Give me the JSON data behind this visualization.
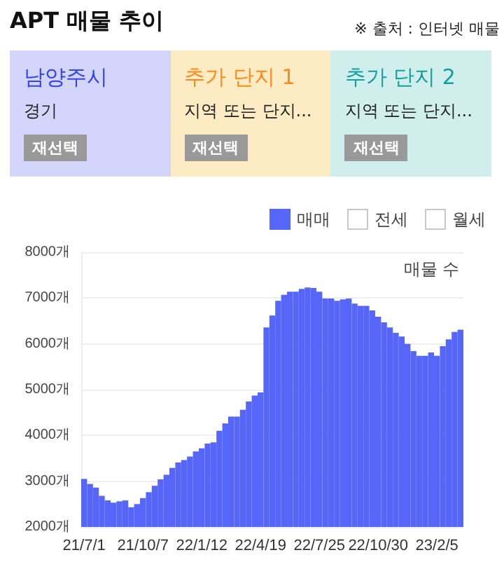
{
  "chart_data": {
    "type": "bar",
    "title": "APT 매물 추이",
    "ylabel": "매물 수",
    "annotations": [
      "※ 출처 : 인터넷 매물",
      "남양주시",
      "경기",
      "재선택",
      "추가 단지 1",
      "지역 또는 단지...",
      "재선택",
      "추가 단지 2",
      "지역 또는 단지...",
      "재선택"
    ],
    "categories": [
      "21/7/1",
      null,
      null,
      null,
      null,
      null,
      null,
      null,
      null,
      null,
      "21/10/7",
      null,
      null,
      null,
      null,
      null,
      null,
      null,
      null,
      null,
      "22/1/12",
      null,
      null,
      null,
      null,
      null,
      null,
      null,
      null,
      null,
      "22/4/19",
      null,
      null,
      null,
      null,
      null,
      null,
      null,
      null,
      null,
      "22/7/25",
      null,
      null,
      null,
      null,
      null,
      null,
      null,
      null,
      null,
      "22/10/30",
      null,
      null,
      null,
      null,
      null,
      null,
      null,
      null,
      null,
      "23/2/5",
      null,
      null,
      null,
      null
    ],
    "series": [
      {
        "name": "매매",
        "color": "#5566f8",
        "values": [
          3050,
          2940,
          2860,
          2680,
          2580,
          2530,
          2560,
          2580,
          2430,
          2500,
          2630,
          2760,
          2900,
          3040,
          3140,
          3290,
          3410,
          3460,
          3540,
          3650,
          3720,
          3820,
          3850,
          4100,
          4260,
          4410,
          4410,
          4560,
          4740,
          4870,
          4940,
          6360,
          6620,
          6940,
          7070,
          7140,
          7140,
          7200,
          7230,
          7220,
          7140,
          6990,
          6990,
          6940,
          6970,
          6990,
          6880,
          6830,
          6830,
          6730,
          6590,
          6470,
          6360,
          6240,
          6160,
          6000,
          5840,
          5740,
          5740,
          5810,
          5740,
          5950,
          6100,
          6260,
          6310
        ]
      },
      {
        "name": "전세",
        "color": "#ffffff",
        "values": [
          null,
          null,
          null,
          null,
          null,
          null,
          null,
          null,
          null,
          null,
          null,
          null,
          null,
          null,
          null,
          null,
          null,
          null,
          null,
          null,
          null,
          null,
          null,
          null,
          null,
          null,
          null,
          null,
          null,
          null,
          null,
          null,
          null,
          null,
          null,
          null,
          null,
          null,
          null,
          null,
          null,
          null,
          null,
          null,
          null,
          null,
          null,
          null,
          null,
          null,
          null,
          null,
          null,
          null,
          null,
          null,
          null,
          null,
          null,
          null,
          null,
          null,
          null,
          null,
          null
        ]
      },
      {
        "name": "월세",
        "color": "#ffffff",
        "values": [
          null,
          null,
          null,
          null,
          null,
          null,
          null,
          null,
          null,
          null,
          null,
          null,
          null,
          null,
          null,
          null,
          null,
          null,
          null,
          null,
          null,
          null,
          null,
          null,
          null,
          null,
          null,
          null,
          null,
          null,
          null,
          null,
          null,
          null,
          null,
          null,
          null,
          null,
          null,
          null,
          null,
          null,
          null,
          null,
          null,
          null,
          null,
          null,
          null,
          null,
          null,
          null,
          null,
          null,
          null,
          null,
          null,
          null,
          null,
          null,
          null,
          null,
          null,
          null,
          null
        ]
      }
    ],
    "ylim": [
      2000,
      8000
    ],
    "yticks": [
      {
        "value": 2000,
        "label": "2000개"
      },
      {
        "value": 3000,
        "label": "3000개"
      },
      {
        "value": 4000,
        "label": "4000개"
      },
      {
        "value": 5000,
        "label": "5000개"
      },
      {
        "value": 6000,
        "label": "6000개"
      },
      {
        "value": 7000,
        "label": "7000개"
      },
      {
        "value": 8000,
        "label": "8000개"
      }
    ],
    "grid": "y",
    "legend": "top right"
  }
}
